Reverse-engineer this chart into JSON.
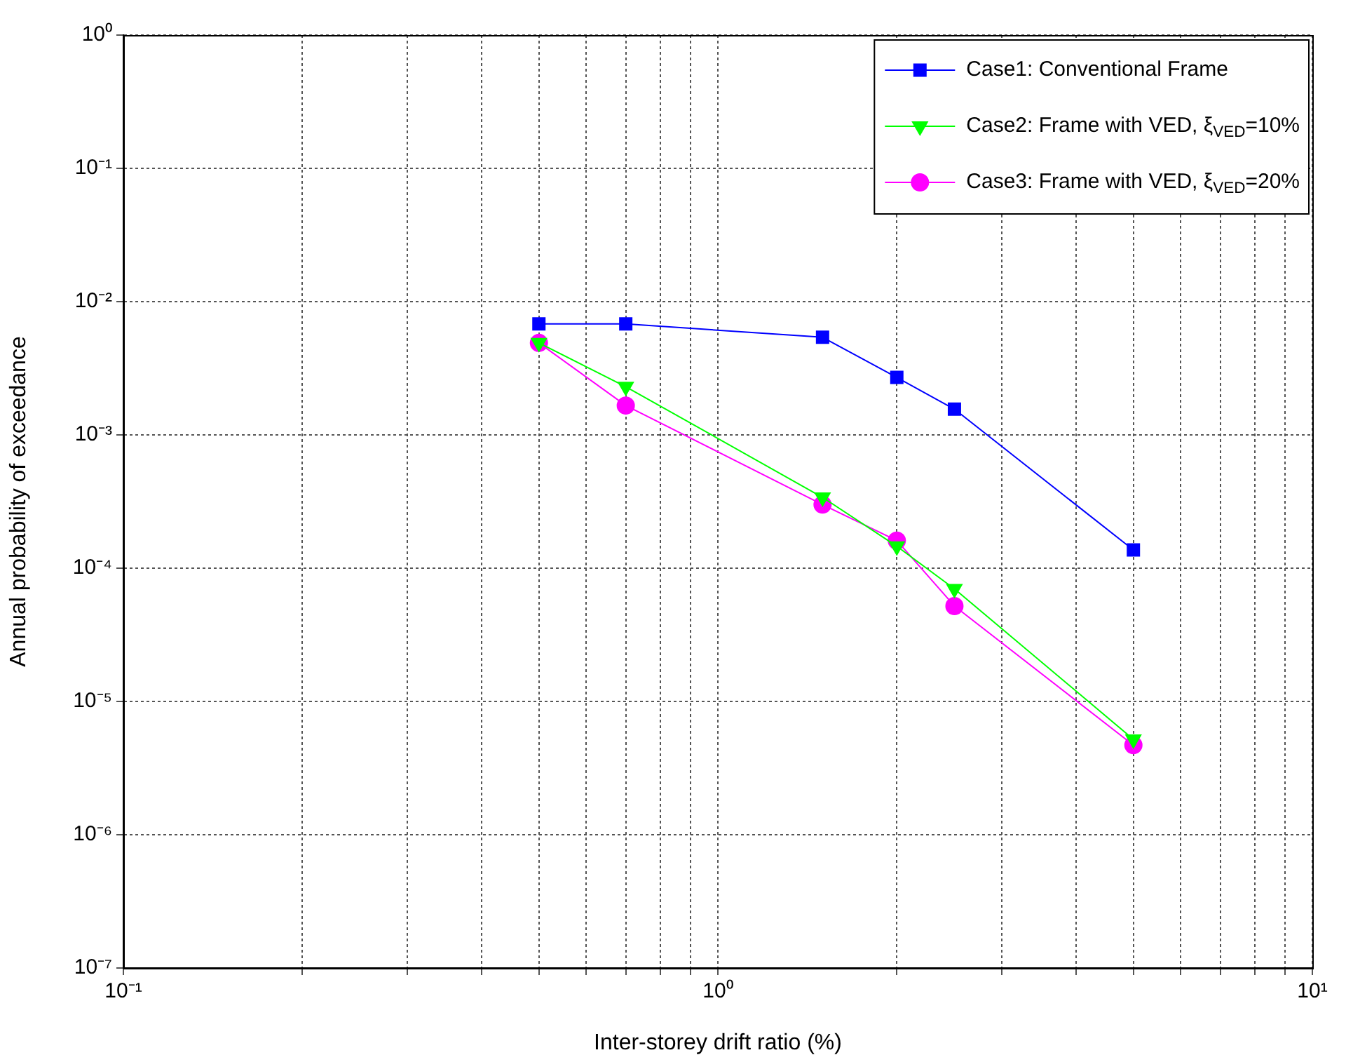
{
  "chart_data": {
    "type": "line",
    "xlabel": "Inter-storey drift ratio (%)",
    "ylabel": "Annual probability of exceedance",
    "log": "xy",
    "grid": true,
    "legend": "top right",
    "line_style": "solid",
    "x": [
      0.5,
      0.7,
      1.5,
      2,
      2.5,
      5
    ],
    "xlim": [
      0.1,
      10
    ],
    "xticks": [
      {
        "value": 0.1,
        "label": "10⁻¹"
      },
      {
        "value": 0.2,
        "label": null
      },
      {
        "value": 0.3,
        "label": null
      },
      {
        "value": 0.4,
        "label": null
      },
      {
        "value": 0.5,
        "label": null
      },
      {
        "value": 0.6,
        "label": null
      },
      {
        "value": 0.7,
        "label": null
      },
      {
        "value": 0.8,
        "label": null
      },
      {
        "value": 0.9,
        "label": null
      },
      {
        "value": 1,
        "label": "10⁰"
      },
      {
        "value": 2,
        "label": null
      },
      {
        "value": 3,
        "label": null
      },
      {
        "value": 4,
        "label": null
      },
      {
        "value": 5,
        "label": null
      },
      {
        "value": 6,
        "label": null
      },
      {
        "value": 7,
        "label": null
      },
      {
        "value": 8,
        "label": null
      },
      {
        "value": 9,
        "label": null
      },
      {
        "value": 10,
        "label": "10¹"
      }
    ],
    "ylim": [
      1e-07,
      1
    ],
    "yticks": [
      {
        "value": 1e-07,
        "label": "10⁻⁷"
      },
      {
        "value": 1e-06,
        "label": "10⁻⁶"
      },
      {
        "value": 1e-05,
        "label": "10⁻⁵"
      },
      {
        "value": 0.0001,
        "label": "10⁻⁴"
      },
      {
        "value": 0.001,
        "label": "10⁻³"
      },
      {
        "value": 0.01,
        "label": "10⁻²"
      },
      {
        "value": 0.1,
        "label": "10⁻¹"
      },
      {
        "value": 1,
        "label": "10⁰"
      }
    ],
    "series": [
      {
        "name": "Case1: Conventional Frame",
        "color": "#0000ff",
        "marker": "square",
        "values": [
          0.0068,
          0.0068,
          0.0054,
          0.0027,
          0.00156,
          0.000137
        ]
      },
      {
        "name": "Case2: Frame with VED, ξ$_{VED}$=10%",
        "color": "#00ff00",
        "marker": "triangle",
        "values": [
          0.0049,
          0.0023,
          0.00034,
          0.000146,
          7e-05,
          5.2e-06
        ]
      },
      {
        "name": "Case3: Frame with VED, ξ$_{VED}$=20%",
        "color": "#ff00ff",
        "marker": "circle",
        "values": [
          0.0049,
          0.00166,
          0.0003,
          0.000161,
          5.2e-05,
          4.7e-06
        ]
      }
    ]
  }
}
